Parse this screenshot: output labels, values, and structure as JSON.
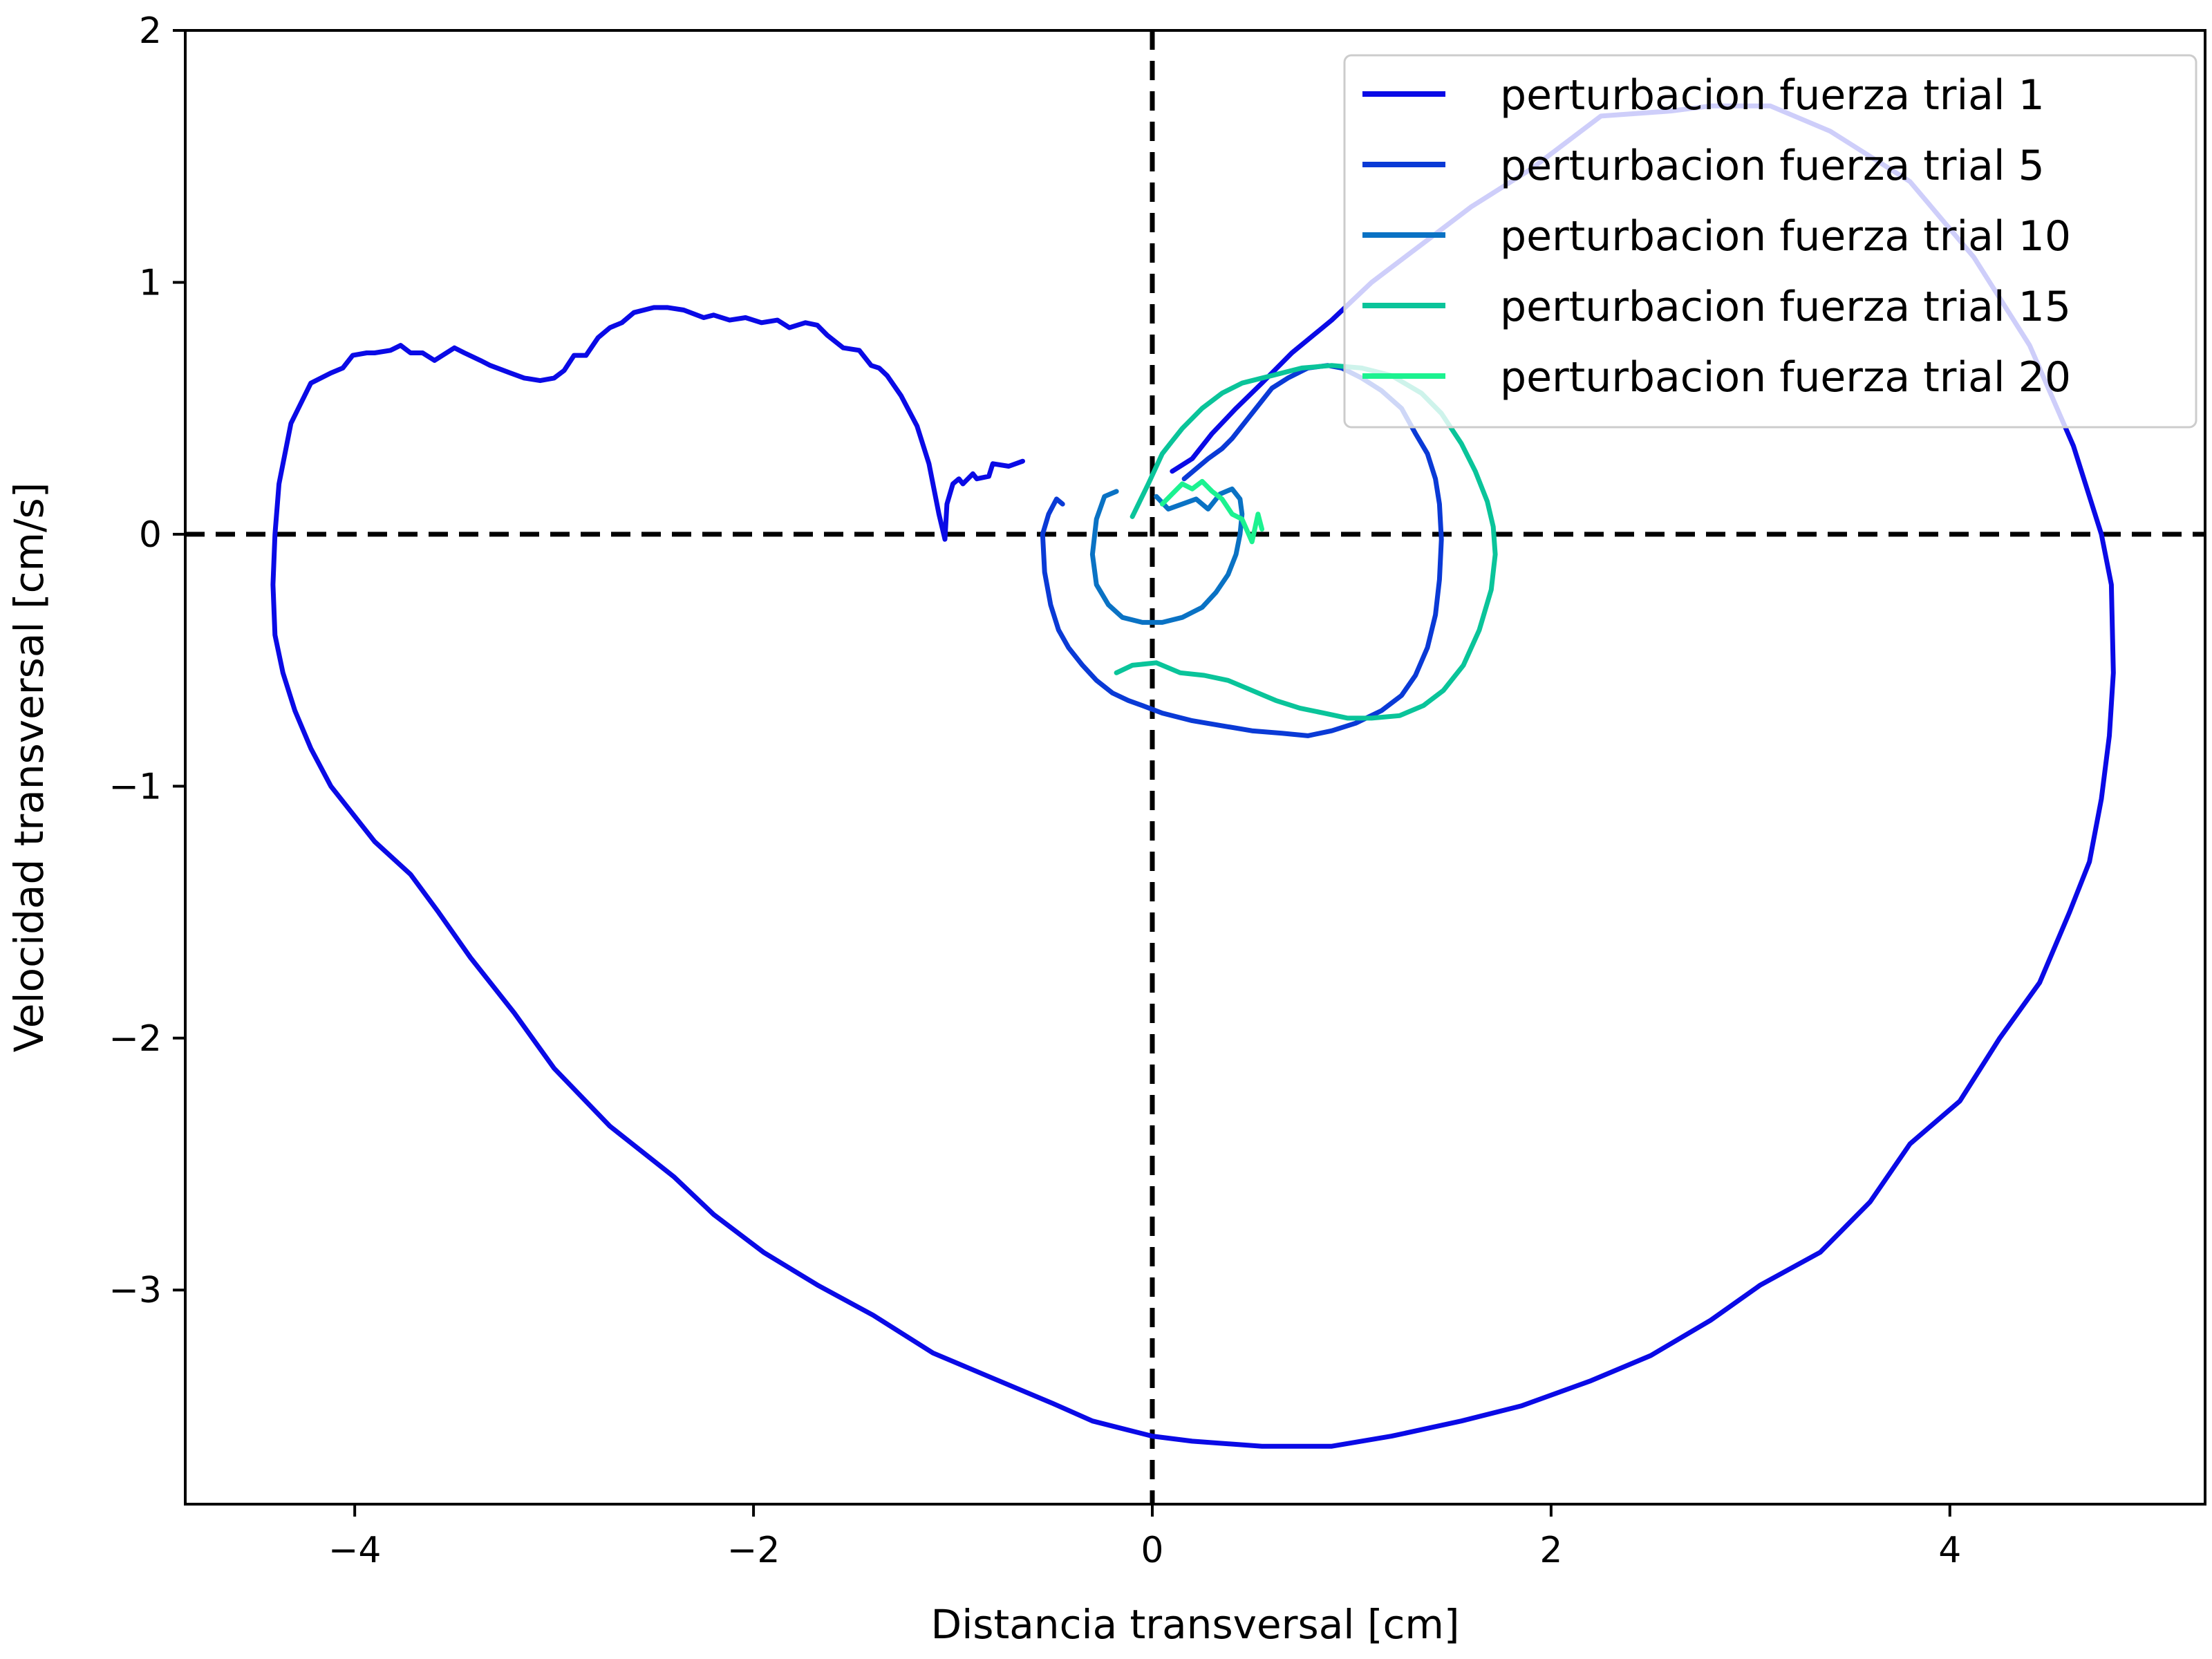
{
  "chart_data": {
    "type": "line",
    "title": "",
    "xlabel": "Distancia transversal [cm]",
    "ylabel": "Velocidad transversal [cm/s]",
    "xlim": [
      -4.85,
      5.28
    ],
    "ylim": [
      -3.85,
      2.0
    ],
    "xticks": [
      -4,
      -2,
      0,
      2,
      4
    ],
    "xtick_labels": [
      "−4",
      "−2",
      "0",
      "2",
      "4"
    ],
    "yticks": [
      -3,
      -2,
      -1,
      0,
      1,
      2
    ],
    "ytick_labels": [
      "−3",
      "−2",
      "−1",
      "0",
      "1",
      "2"
    ],
    "grid": false,
    "reference_lines": {
      "x": 0,
      "y": 0,
      "style": "dashed",
      "color": "#000000"
    },
    "legend": {
      "position": "top-right"
    },
    "series": [
      {
        "name": "perturbacion fuerza trial 1",
        "color": "#0a0ae6",
        "x": [
          -0.65,
          -0.72,
          -0.8,
          -0.82,
          -0.88,
          -0.9,
          -0.95,
          -0.97,
          -1.0,
          -1.03,
          -1.04,
          -1.07,
          -1.12,
          -1.18,
          -1.26,
          -1.33,
          -1.37,
          -1.41,
          -1.47,
          -1.55,
          -1.63,
          -1.68,
          -1.74,
          -1.82,
          -1.88,
          -1.96,
          -2.04,
          -2.12,
          -2.2,
          -2.25,
          -2.35,
          -2.43,
          -2.5,
          -2.6,
          -2.66,
          -2.72,
          -2.78,
          -2.84,
          -2.9,
          -2.95,
          -3.0,
          -3.07,
          -3.15,
          -3.22,
          -3.32,
          -3.37,
          -3.45,
          -3.5,
          -3.6,
          -3.66,
          -3.72,
          -3.77,
          -3.82,
          -3.9,
          -3.94,
          -4.01,
          -4.06,
          -4.12,
          -4.22,
          -4.32,
          -4.38,
          -4.4,
          -4.41,
          -4.4,
          -4.36,
          -4.3,
          -4.22,
          -4.12,
          -4.0,
          -3.9,
          -3.72,
          -3.58,
          -3.42,
          -3.2,
          -3.0,
          -2.72,
          -2.4,
          -2.2,
          -1.95,
          -1.68,
          -1.4,
          -1.1,
          -0.8,
          -0.5,
          -0.3,
          -0.15,
          0.0,
          0.2,
          0.55,
          0.9,
          1.2,
          1.55,
          1.85,
          2.2,
          2.5,
          2.8,
          3.05,
          3.35,
          3.6,
          3.8,
          4.05,
          4.25,
          4.45,
          4.6,
          4.7,
          4.76,
          4.8,
          4.82,
          4.81,
          4.76,
          4.62,
          4.4,
          4.12,
          3.8,
          3.4,
          3.1,
          2.8,
          2.6,
          2.25,
          1.9,
          1.6,
          1.35,
          1.1,
          0.9,
          0.7,
          0.55,
          0.42,
          0.3,
          0.2,
          0.1
        ],
        "y": [
          0.29,
          0.27,
          0.28,
          0.23,
          0.22,
          0.24,
          0.2,
          0.22,
          0.2,
          0.12,
          -0.02,
          0.08,
          0.28,
          0.43,
          0.55,
          0.63,
          0.66,
          0.67,
          0.73,
          0.74,
          0.79,
          0.83,
          0.84,
          0.82,
          0.85,
          0.84,
          0.86,
          0.85,
          0.87,
          0.86,
          0.89,
          0.9,
          0.9,
          0.88,
          0.84,
          0.82,
          0.78,
          0.71,
          0.71,
          0.65,
          0.62,
          0.61,
          0.62,
          0.64,
          0.67,
          0.69,
          0.72,
          0.74,
          0.69,
          0.72,
          0.72,
          0.75,
          0.73,
          0.72,
          0.72,
          0.71,
          0.66,
          0.64,
          0.6,
          0.44,
          0.2,
          0.0,
          -0.2,
          -0.4,
          -0.55,
          -0.7,
          -0.85,
          -1.0,
          -1.12,
          -1.22,
          -1.35,
          -1.5,
          -1.68,
          -1.9,
          -2.12,
          -2.35,
          -2.55,
          -2.7,
          -2.85,
          -2.98,
          -3.1,
          -3.25,
          -3.35,
          -3.45,
          -3.52,
          -3.55,
          -3.58,
          -3.6,
          -3.62,
          -3.62,
          -3.58,
          -3.52,
          -3.46,
          -3.36,
          -3.26,
          -3.12,
          -2.98,
          -2.85,
          -2.65,
          -2.42,
          -2.25,
          -2.0,
          -1.78,
          -1.5,
          -1.3,
          -1.05,
          -0.8,
          -0.55,
          -0.2,
          0.0,
          0.35,
          0.75,
          1.1,
          1.4,
          1.6,
          1.7,
          1.7,
          1.68,
          1.66,
          1.45,
          1.3,
          1.15,
          1.0,
          0.85,
          0.72,
          0.6,
          0.5,
          0.4,
          0.3,
          0.25
        ]
      },
      {
        "name": "perturbacion fuerza trial 5",
        "color": "#0a3ad6",
        "x": [
          -0.45,
          -0.48,
          -0.52,
          -0.55,
          -0.54,
          -0.51,
          -0.47,
          -0.42,
          -0.35,
          -0.28,
          -0.2,
          -0.12,
          -0.05,
          0.05,
          0.2,
          0.35,
          0.5,
          0.65,
          0.78,
          0.9,
          1.02,
          1.15,
          1.25,
          1.32,
          1.38,
          1.42,
          1.44,
          1.45,
          1.44,
          1.42,
          1.38,
          1.32,
          1.25,
          1.15,
          1.05,
          0.95,
          0.88,
          0.78,
          0.68,
          0.6,
          0.52,
          0.45,
          0.4,
          0.35,
          0.28,
          0.22,
          0.16
        ],
        "y": [
          0.12,
          0.14,
          0.08,
          0.0,
          -0.15,
          -0.28,
          -0.38,
          -0.45,
          -0.52,
          -0.58,
          -0.63,
          -0.66,
          -0.68,
          -0.71,
          -0.74,
          -0.76,
          -0.78,
          -0.79,
          -0.8,
          -0.78,
          -0.75,
          -0.7,
          -0.64,
          -0.56,
          -0.45,
          -0.32,
          -0.18,
          -0.02,
          0.12,
          0.22,
          0.32,
          0.4,
          0.5,
          0.57,
          0.62,
          0.66,
          0.67,
          0.66,
          0.62,
          0.58,
          0.5,
          0.43,
          0.38,
          0.34,
          0.3,
          0.26,
          0.22
        ]
      },
      {
        "name": "perturbacion fuerza trial 10",
        "color": "#0a72c4",
        "x": [
          -0.18,
          -0.24,
          -0.28,
          -0.3,
          -0.28,
          -0.22,
          -0.15,
          -0.05,
          0.05,
          0.15,
          0.25,
          0.32,
          0.38,
          0.42,
          0.44,
          0.45,
          0.44,
          0.4,
          0.34,
          0.28,
          0.22,
          0.15,
          0.08,
          0.02
        ],
        "y": [
          0.17,
          0.15,
          0.06,
          -0.08,
          -0.2,
          -0.28,
          -0.33,
          -0.35,
          -0.35,
          -0.33,
          -0.29,
          -0.23,
          -0.16,
          -0.08,
          0.0,
          0.08,
          0.14,
          0.18,
          0.16,
          0.1,
          0.14,
          0.12,
          0.1,
          0.15
        ]
      },
      {
        "name": "perturbacion fuerza trial 15",
        "color": "#0ac49a",
        "x": [
          -0.1,
          -0.02,
          0.05,
          0.1,
          0.15,
          0.25,
          0.35,
          0.45,
          0.6,
          0.75,
          0.9,
          1.05,
          1.2,
          1.35,
          1.45,
          1.55,
          1.62,
          1.68,
          1.71,
          1.72,
          1.7,
          1.64,
          1.56,
          1.46,
          1.36,
          1.24,
          1.1,
          0.98,
          0.86,
          0.74,
          0.62,
          0.5,
          0.38,
          0.26,
          0.14,
          0.02,
          -0.1,
          -0.18
        ],
        "y": [
          0.07,
          0.2,
          0.32,
          0.37,
          0.42,
          0.5,
          0.56,
          0.6,
          0.63,
          0.66,
          0.67,
          0.66,
          0.63,
          0.56,
          0.48,
          0.36,
          0.25,
          0.13,
          0.03,
          -0.08,
          -0.22,
          -0.38,
          -0.52,
          -0.62,
          -0.68,
          -0.72,
          -0.73,
          -0.73,
          -0.71,
          -0.69,
          -0.66,
          -0.62,
          -0.58,
          -0.56,
          -0.55,
          -0.51,
          -0.52,
          -0.55
        ]
      },
      {
        "name": "perturbacion fuerza trial 20",
        "color": "#1cf290",
        "x": [
          0.05,
          0.1,
          0.15,
          0.2,
          0.25,
          0.3,
          0.35,
          0.4,
          0.45,
          0.5,
          0.53,
          0.55
        ],
        "y": [
          0.12,
          0.16,
          0.2,
          0.18,
          0.21,
          0.17,
          0.14,
          0.08,
          0.06,
          -0.03,
          0.08,
          0.02
        ]
      }
    ]
  }
}
